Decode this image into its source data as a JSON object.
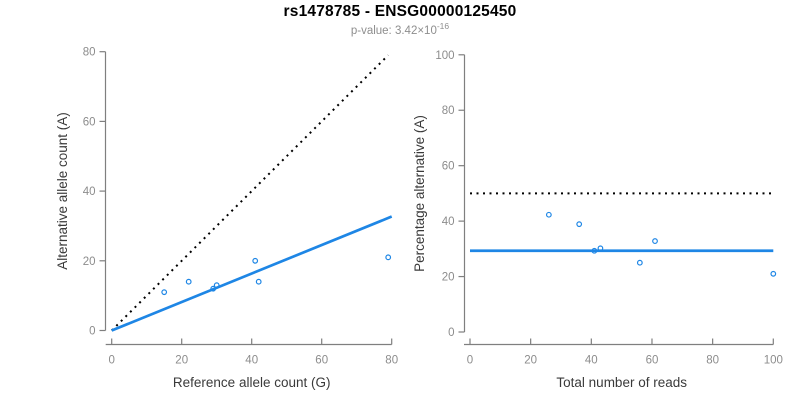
{
  "header": {
    "title": "rs1478785 - ENSG00000125450",
    "pvalue_prefix": "p-value: 3.42×10",
    "pvalue_exponent": "-16"
  },
  "colors": {
    "accent_blue": "#1E86E5",
    "reference_line_black": "#000000",
    "axis_line_gray": "#7F7F7F",
    "tick_label_gray": "#8C8C8C",
    "axis_title_gray": "#3A3A3A",
    "title_black": "#000000",
    "subtitle_gray": "#8E8E8E"
  },
  "chart_data": [
    {
      "type": "scatter",
      "title": "",
      "xlabel": "Reference allele count (G)",
      "ylabel": "Alternative allele count (A)",
      "xlim": [
        0,
        80
      ],
      "ylim": [
        0,
        80
      ],
      "xticks": [
        0,
        20,
        40,
        60,
        80
      ],
      "yticks": [
        0,
        20,
        40,
        60,
        80
      ],
      "grid": false,
      "legend": "none",
      "point_color": "#1E86E5",
      "points": [
        [
          15,
          11
        ],
        [
          22,
          14
        ],
        [
          29,
          12
        ],
        [
          30,
          13
        ],
        [
          41,
          20
        ],
        [
          42,
          14
        ],
        [
          79,
          21
        ]
      ],
      "lines": [
        {
          "name": "identity-line",
          "style": "dotted",
          "color": "#000000",
          "from": [
            0,
            0
          ],
          "to": [
            79,
            79
          ]
        },
        {
          "name": "regression-line",
          "style": "solid",
          "color": "#1E86E5",
          "from": [
            0,
            0
          ],
          "to": [
            80,
            32.7
          ]
        }
      ]
    },
    {
      "type": "scatter",
      "title": "",
      "xlabel": "Total number of reads",
      "ylabel": "Percentage alternative (A)",
      "xlim": [
        0,
        100
      ],
      "ylim": [
        0,
        100
      ],
      "xticks": [
        0,
        20,
        40,
        60,
        80,
        100
      ],
      "yticks": [
        0,
        20,
        40,
        60,
        80,
        100
      ],
      "grid": false,
      "legend": "none",
      "point_color": "#1E86E5",
      "points": [
        [
          26,
          42.3
        ],
        [
          36,
          38.9
        ],
        [
          41,
          29.3
        ],
        [
          43,
          30.2
        ],
        [
          56,
          25
        ],
        [
          61,
          32.8
        ],
        [
          100,
          21
        ]
      ],
      "lines": [
        {
          "name": "fifty-percent-reference-line",
          "style": "dotted",
          "color": "#000000",
          "from": [
            0,
            50
          ],
          "to": [
            100,
            50
          ]
        },
        {
          "name": "mean-percentage-line",
          "style": "solid",
          "color": "#1E86E5",
          "from": [
            0,
            29.3
          ],
          "to": [
            100,
            29.3
          ]
        }
      ]
    }
  ]
}
